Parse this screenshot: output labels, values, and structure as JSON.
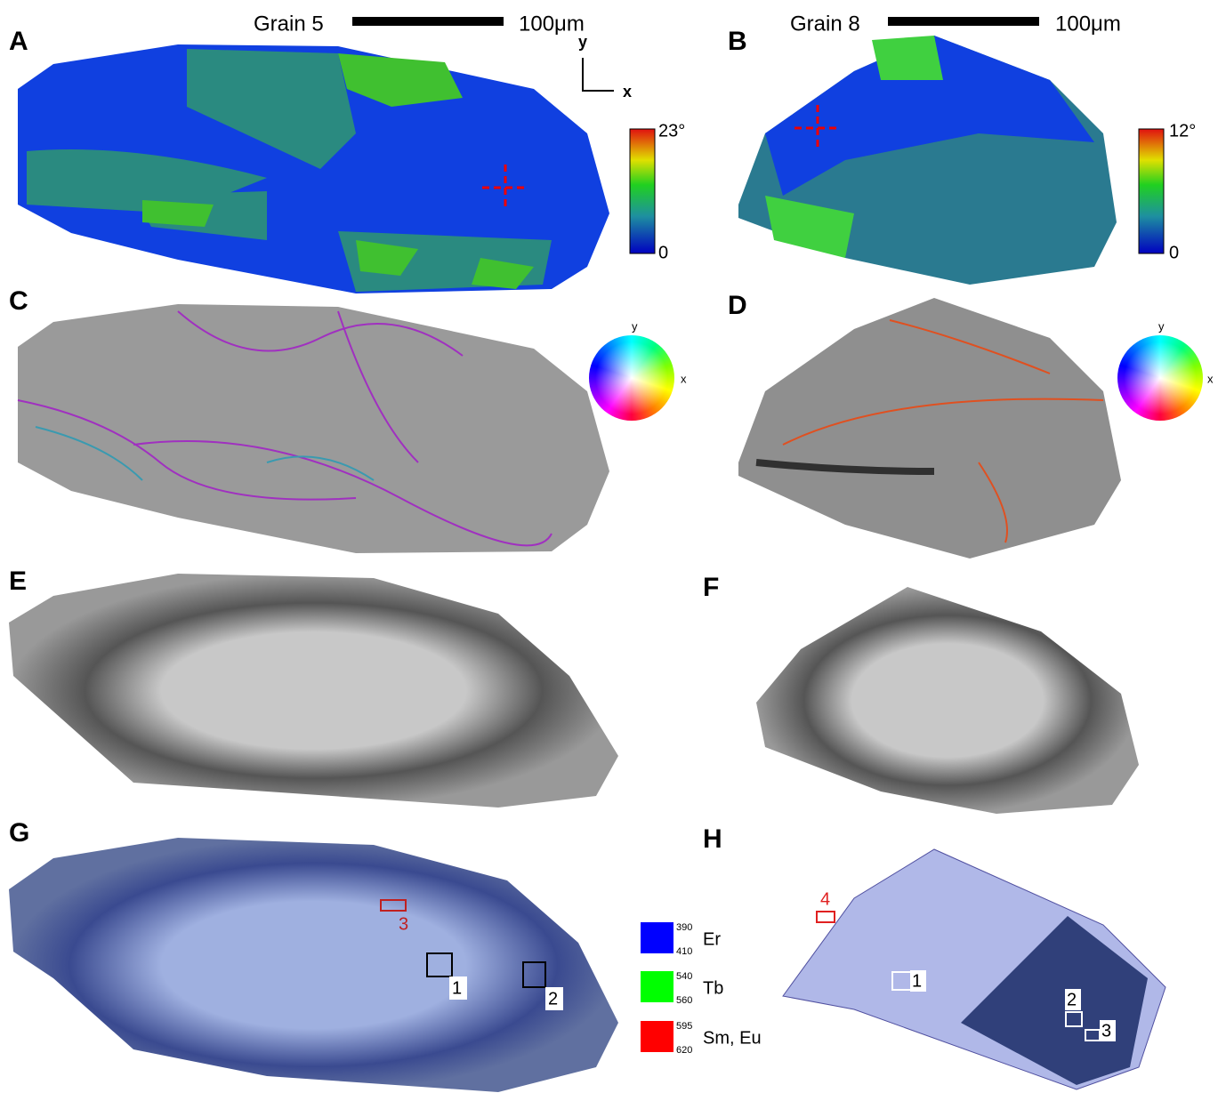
{
  "header": {
    "grain_left": "Grain 5",
    "scale_left": "100μm",
    "grain_right": "Grain 8",
    "scale_right": "100μm"
  },
  "panels": [
    "A",
    "B",
    "C",
    "D",
    "E",
    "F",
    "G",
    "H"
  ],
  "axes": {
    "y": "y",
    "x": "x"
  },
  "colorbars": [
    {
      "max": "23°",
      "min": "0"
    },
    {
      "max": "12°",
      "min": "0"
    }
  ],
  "wheels": [
    {
      "y": "y",
      "x": "x"
    },
    {
      "y": "y",
      "x": "x"
    }
  ],
  "boxes_g": [
    "3",
    "1",
    "2"
  ],
  "boxes_h": [
    "1",
    "2",
    "3",
    "4"
  ],
  "legend": [
    {
      "top": "390",
      "bottom": "410",
      "label": "Er"
    },
    {
      "top": "540",
      "bottom": "560",
      "label": "Tb"
    },
    {
      "top": "595",
      "bottom": "620",
      "label": "Sm, Eu"
    }
  ]
}
